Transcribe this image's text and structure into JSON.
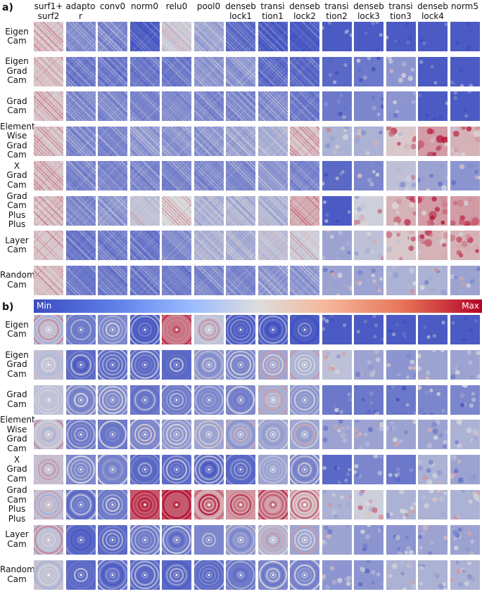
{
  "panels": [
    {
      "letter": "a)"
    },
    {
      "letter": "b)",
      "colorbar": {
        "min_label": "Min",
        "max_label": "Max"
      }
    }
  ],
  "columns": [
    "surf1+\nsurf2",
    "adapto\nr",
    "conv0",
    "norm0",
    "relu0",
    "pool0",
    "denseb\nlock1",
    "transi\ntion1",
    "denseb\nlock2",
    "transi\ntion2",
    "denseb\nlock3",
    "transi\ntion3",
    "denseb\nlock4",
    "norm5"
  ],
  "rows": [
    "Eigen\nCam",
    "Eigen\nGrad\nCam",
    "Grad\nCam",
    "Element\nWise\nGrad\nCam",
    "X\nGrad\nCam",
    "Grad\nCam\nPlus\nPlus",
    "Layer\nCam",
    "Random\nCam"
  ],
  "colors": {
    "low": "#3b4cc0",
    "mid": "#dddddd",
    "high": "#b40426"
  },
  "heat": {
    "a": [
      [
        0.55,
        0.2,
        0.2,
        0.05,
        0.45,
        0.3,
        0.1,
        0.05,
        0.05,
        0.05,
        0.05,
        0.05,
        0.05,
        0.05
      ],
      [
        0.55,
        0.15,
        0.15,
        0.15,
        0.15,
        0.25,
        0.25,
        0.1,
        0.1,
        0.1,
        0.15,
        0.25,
        0.05,
        0.05
      ],
      [
        0.55,
        0.2,
        0.2,
        0.2,
        0.2,
        0.2,
        0.2,
        0.2,
        0.15,
        0.15,
        0.2,
        0.25,
        0.05,
        0.05
      ],
      [
        0.55,
        0.2,
        0.2,
        0.25,
        0.25,
        0.25,
        0.3,
        0.35,
        0.55,
        0.35,
        0.35,
        0.55,
        0.65,
        0.6
      ],
      [
        0.55,
        0.2,
        0.2,
        0.2,
        0.2,
        0.2,
        0.2,
        0.25,
        0.2,
        0.1,
        0.2,
        0.4,
        0.3,
        0.25
      ],
      [
        0.55,
        0.2,
        0.25,
        0.4,
        0.5,
        0.35,
        0.35,
        0.35,
        0.6,
        0.05,
        0.45,
        0.6,
        0.65,
        0.65
      ],
      [
        0.55,
        0.15,
        0.15,
        0.15,
        0.2,
        0.35,
        0.35,
        0.4,
        0.45,
        0.3,
        0.4,
        0.55,
        0.6,
        0.6
      ],
      [
        0.55,
        0.15,
        0.15,
        0.15,
        0.15,
        0.2,
        0.2,
        0.25,
        0.25,
        0.3,
        0.3,
        0.35,
        0.35,
        0.3
      ]
    ],
    "b": [
      [
        0.4,
        0.15,
        0.2,
        0.05,
        0.75,
        0.4,
        0.05,
        0.05,
        0.05,
        0.05,
        0.05,
        0.05,
        0.05,
        0.05
      ],
      [
        0.4,
        0.1,
        0.1,
        0.1,
        0.1,
        0.25,
        0.2,
        0.3,
        0.35,
        0.4,
        0.3,
        0.25,
        0.3,
        0.3
      ],
      [
        0.4,
        0.2,
        0.2,
        0.15,
        0.15,
        0.2,
        0.2,
        0.35,
        0.25,
        0.15,
        0.15,
        0.15,
        0.2,
        0.2
      ],
      [
        0.4,
        0.15,
        0.15,
        0.2,
        0.25,
        0.3,
        0.3,
        0.3,
        0.3,
        0.3,
        0.3,
        0.3,
        0.3,
        0.35
      ],
      [
        0.4,
        0.2,
        0.2,
        0.1,
        0.1,
        0.1,
        0.1,
        0.3,
        0.2,
        0.1,
        0.2,
        0.15,
        0.35,
        0.3
      ],
      [
        0.4,
        0.15,
        0.15,
        0.8,
        0.8,
        0.65,
        0.65,
        0.65,
        0.55,
        0.35,
        0.45,
        0.35,
        0.35,
        0.35
      ],
      [
        0.4,
        0.1,
        0.1,
        0.15,
        0.15,
        0.2,
        0.25,
        0.35,
        0.3,
        0.3,
        0.25,
        0.25,
        0.3,
        0.3
      ],
      [
        0.4,
        0.1,
        0.1,
        0.1,
        0.1,
        0.1,
        0.15,
        0.2,
        0.2,
        0.25,
        0.25,
        0.35,
        0.35,
        0.35
      ]
    ]
  }
}
